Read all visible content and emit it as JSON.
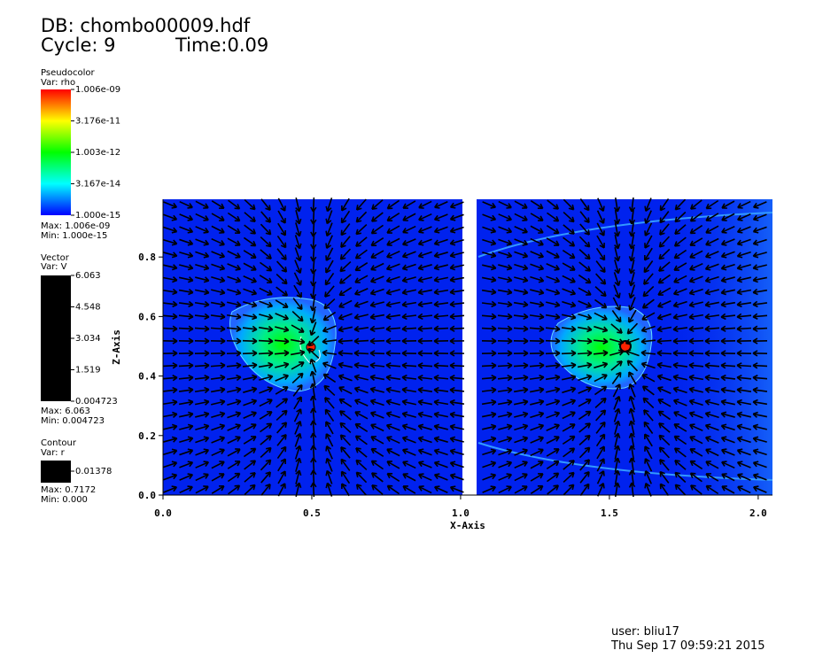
{
  "header": {
    "db": "DB: chombo00009.hdf",
    "cycle": "Cycle: 9",
    "time": "Time:0.09"
  },
  "legends": {
    "pseudocolor": {
      "title": "Pseudocolor",
      "var": "Var: rho",
      "ticks": [
        "1.006e-09",
        "3.176e-11",
        "1.003e-12",
        "3.167e-14",
        "1.000e-15"
      ],
      "max": "Max:  1.006e-09",
      "min": "Min:  1.000e-15"
    },
    "vector": {
      "title": "Vector",
      "var": "Var: V",
      "ticks": [
        "6.063",
        "4.548",
        "3.034",
        "1.519",
        "0.004723"
      ],
      "max": "Max:  6.063",
      "min": "Min:  0.004723"
    },
    "contour": {
      "title": "Contour",
      "var": "Var: r",
      "ticks": [
        "0.01378"
      ],
      "max": "Max:  0.7172",
      "min": "Min:  0.000"
    }
  },
  "plot": {
    "xlabel": "X-Axis",
    "ylabel": "Z-Axis",
    "xlim": [
      0,
      2.048
    ],
    "ylim": [
      0,
      0.994
    ],
    "xticks": [
      {
        "value": 0,
        "label": "0.0"
      },
      0.5,
      {
        "value": 1,
        "label": "1.0"
      },
      1.5,
      {
        "value": 2,
        "label": "2.0"
      }
    ],
    "yticks": [
      {
        "value": 0,
        "label": "0.0"
      },
      0.2,
      0.4,
      0.6,
      0.8
    ]
  },
  "footer": {
    "user": "user: bliu17",
    "date": "Thu Sep 17 09:59:21 2015"
  }
}
